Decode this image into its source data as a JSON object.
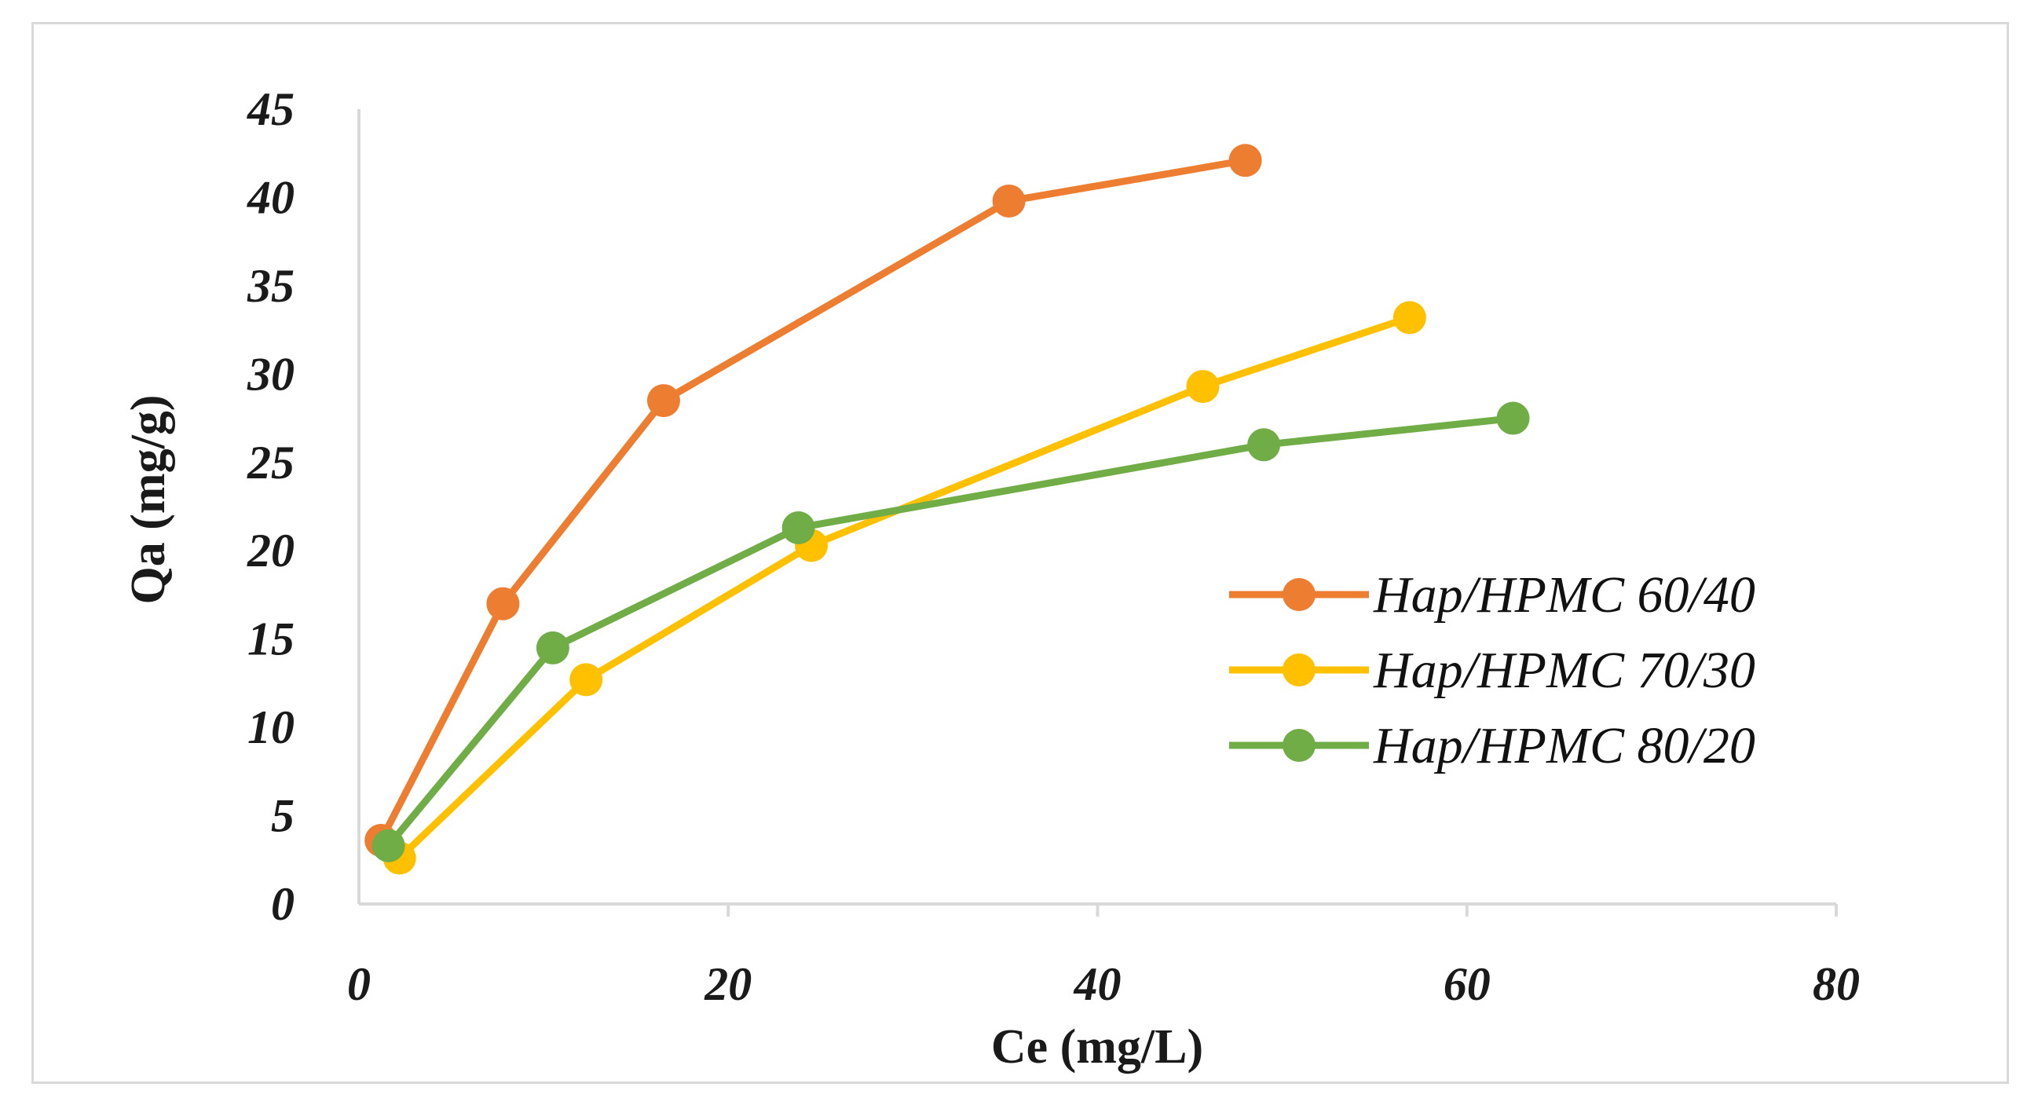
{
  "chart_data": {
    "type": "line",
    "title": "",
    "xlabel": "Ce (mg/L)",
    "ylabel": "Qa (mg/g)",
    "xlim": [
      0,
      80
    ],
    "ylim": [
      0,
      45
    ],
    "xticks": [
      0,
      20,
      40,
      60,
      80
    ],
    "yticks": [
      0,
      5,
      10,
      15,
      20,
      25,
      30,
      35,
      40,
      45
    ],
    "grid": false,
    "legend_position": "right",
    "series": [
      {
        "name": "Hap/HPMC 60/40",
        "color": "#ED7D31",
        "x": [
          1.2,
          7.8,
          16.5,
          35.2,
          48.0
        ],
        "y": [
          3.6,
          17.0,
          28.5,
          39.8,
          42.1
        ]
      },
      {
        "name": "Hap/HPMC 70/30",
        "color": "#FFC000",
        "x": [
          2.2,
          12.3,
          24.5,
          45.7,
          56.9
        ],
        "y": [
          2.6,
          12.7,
          20.3,
          29.3,
          33.2
        ]
      },
      {
        "name": "Hap/HPMC 80/20",
        "color": "#70AD47",
        "x": [
          1.6,
          10.5,
          23.8,
          49.0,
          62.5
        ],
        "y": [
          3.3,
          14.5,
          21.3,
          26.0,
          27.5
        ]
      }
    ]
  }
}
